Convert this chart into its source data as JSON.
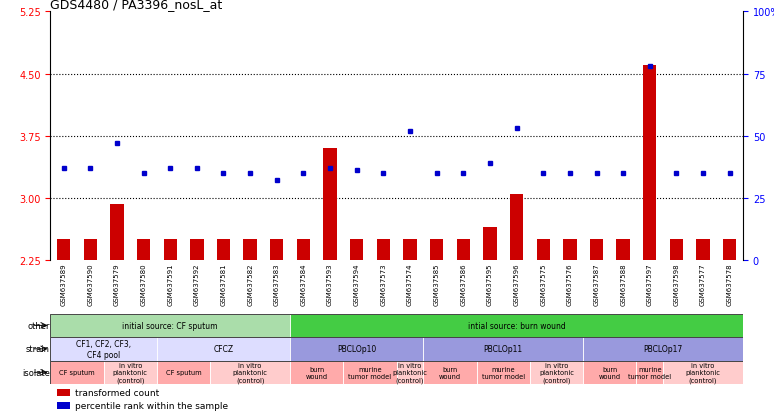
{
  "title": "GDS4480 / PA3396_nosL_at",
  "samples": [
    "GSM637589",
    "GSM637590",
    "GSM637579",
    "GSM637580",
    "GSM637591",
    "GSM637592",
    "GSM637581",
    "GSM637582",
    "GSM637583",
    "GSM637584",
    "GSM637593",
    "GSM637594",
    "GSM637573",
    "GSM637574",
    "GSM637585",
    "GSM637586",
    "GSM637595",
    "GSM637596",
    "GSM637575",
    "GSM637576",
    "GSM637587",
    "GSM637588",
    "GSM637597",
    "GSM637598",
    "GSM637577",
    "GSM637578"
  ],
  "red_values": [
    2.5,
    2.5,
    2.93,
    2.5,
    2.5,
    2.5,
    2.5,
    2.5,
    2.5,
    2.5,
    3.6,
    2.5,
    2.5,
    2.5,
    2.5,
    2.5,
    2.65,
    3.05,
    2.5,
    2.5,
    2.5,
    2.5,
    4.6,
    2.5,
    2.5,
    2.5
  ],
  "blue_values_pct": [
    37,
    37,
    47,
    35,
    37,
    37,
    35,
    35,
    32,
    35,
    37,
    36,
    35,
    52,
    35,
    35,
    39,
    53,
    35,
    35,
    35,
    35,
    78,
    35,
    35,
    35
  ],
  "ylim_left": [
    2.25,
    5.25
  ],
  "ylim_right": [
    0,
    100
  ],
  "yticks_left": [
    2.25,
    3.0,
    3.75,
    4.5,
    5.25
  ],
  "yticks_right": [
    0,
    25,
    50,
    75,
    100
  ],
  "hlines": [
    3.0,
    3.75,
    4.5
  ],
  "bar_color": "#cc0000",
  "dot_color": "#0000cc",
  "bar_bottom": 2.25,
  "annotation_rows": {
    "other": {
      "label": "other",
      "groups": [
        {
          "text": "initial source: CF sputum",
          "start": 0,
          "end": 9,
          "color": "#aaddaa"
        },
        {
          "text": "intial source: burn wound",
          "start": 9,
          "end": 26,
          "color": "#44cc44"
        }
      ]
    },
    "strain": {
      "label": "strain",
      "groups": [
        {
          "text": "CF1, CF2, CF3,\nCF4 pool",
          "start": 0,
          "end": 4,
          "color": "#ddddff"
        },
        {
          "text": "CFCZ",
          "start": 4,
          "end": 9,
          "color": "#ddddff"
        },
        {
          "text": "PBCLOp10",
          "start": 9,
          "end": 14,
          "color": "#9999dd"
        },
        {
          "text": "PBCLOp11",
          "start": 14,
          "end": 20,
          "color": "#9999dd"
        },
        {
          "text": "PBCLOp17",
          "start": 20,
          "end": 26,
          "color": "#9999dd"
        }
      ]
    },
    "isolate": {
      "label": "isolate",
      "groups": [
        {
          "text": "CF sputum",
          "start": 0,
          "end": 2,
          "color": "#ffaaaa"
        },
        {
          "text": "in vitro\nplanktonic\n(control)",
          "start": 2,
          "end": 4,
          "color": "#ffcccc"
        },
        {
          "text": "CF sputum",
          "start": 4,
          "end": 6,
          "color": "#ffaaaa"
        },
        {
          "text": "in vitro\nplanktonic\n(control)",
          "start": 6,
          "end": 9,
          "color": "#ffcccc"
        },
        {
          "text": "burn\nwound",
          "start": 9,
          "end": 11,
          "color": "#ffaaaa"
        },
        {
          "text": "murine\ntumor model",
          "start": 11,
          "end": 13,
          "color": "#ffaaaa"
        },
        {
          "text": "in vitro\nplanktonic\n(control)",
          "start": 13,
          "end": 14,
          "color": "#ffcccc"
        },
        {
          "text": "burn\nwound",
          "start": 14,
          "end": 16,
          "color": "#ffaaaa"
        },
        {
          "text": "murine\ntumor model",
          "start": 16,
          "end": 18,
          "color": "#ffaaaa"
        },
        {
          "text": "in vitro\nplanktonic\n(control)",
          "start": 18,
          "end": 20,
          "color": "#ffcccc"
        },
        {
          "text": "burn\nwound",
          "start": 20,
          "end": 22,
          "color": "#ffaaaa"
        },
        {
          "text": "murine\ntumor model",
          "start": 22,
          "end": 23,
          "color": "#ffaaaa"
        },
        {
          "text": "in vitro\nplanktonic\n(control)",
          "start": 23,
          "end": 26,
          "color": "#ffcccc"
        }
      ]
    }
  },
  "legend_items": [
    {
      "label": "transformed count",
      "color": "#cc0000"
    },
    {
      "label": "percentile rank within the sample",
      "color": "#0000cc"
    }
  ]
}
